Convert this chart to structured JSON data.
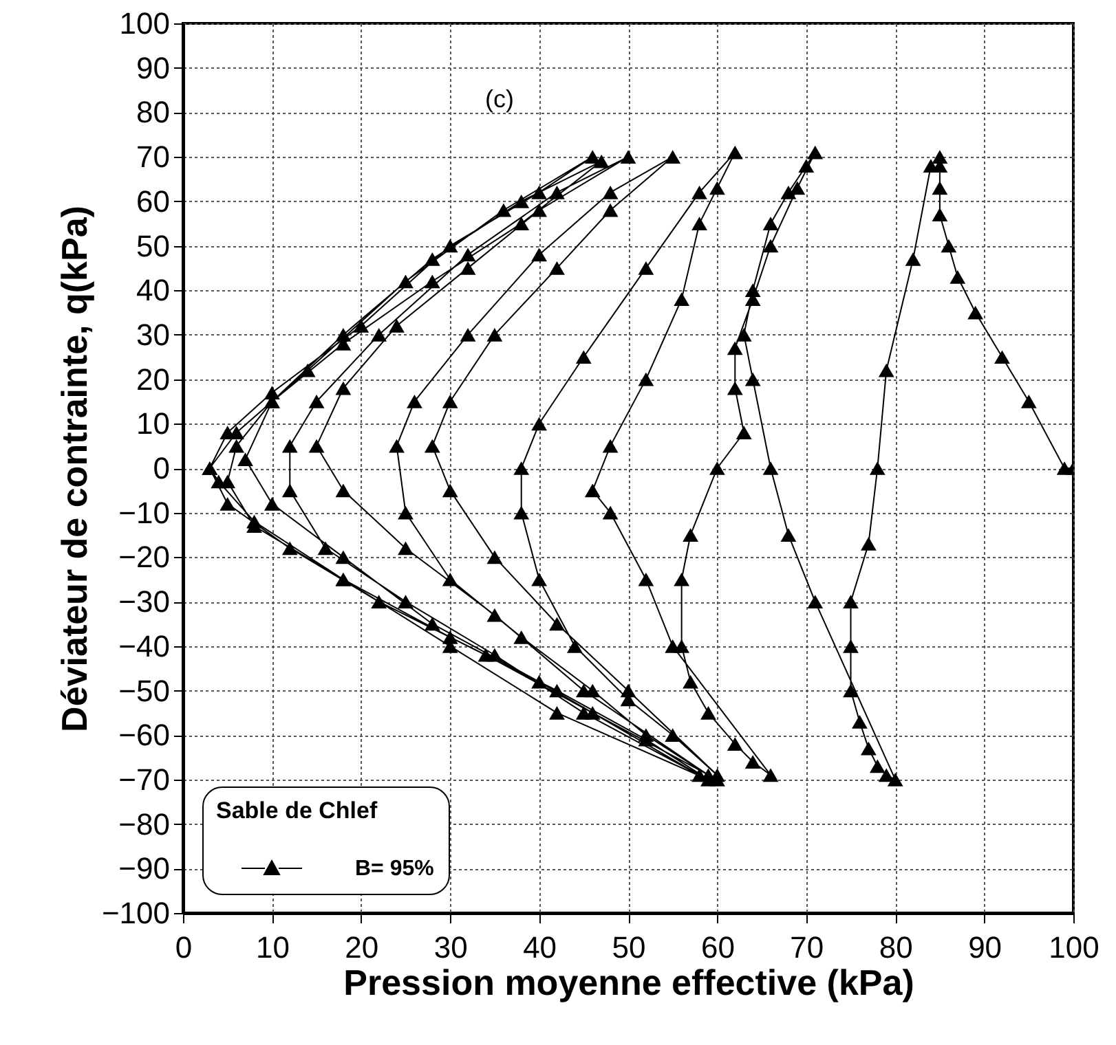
{
  "chart_data": {
    "type": "line",
    "xlabel": "Pression moyenne effective (kPa)",
    "ylabel": "Déviateur de contrainte, q(kPa)",
    "legend_title": "Sable de Chlef",
    "annotations": [
      "(c)"
    ],
    "xlim": [
      0,
      100
    ],
    "ylim": [
      -100,
      100
    ],
    "xticks": [
      0,
      10,
      20,
      30,
      40,
      50,
      60,
      70,
      80,
      90,
      100
    ],
    "yticks": [
      -100,
      -90,
      -80,
      -70,
      -60,
      -50,
      -40,
      -30,
      -20,
      -10,
      0,
      10,
      20,
      30,
      40,
      50,
      60,
      70,
      80,
      90,
      100
    ],
    "grid": true,
    "legend": "bottom left",
    "marker": "triangle",
    "line_style": "solid",
    "series": [
      {
        "name": "B= 95%",
        "color": "#000000",
        "x": [
          100,
          99,
          95,
          92,
          89,
          87,
          86,
          85,
          85,
          85,
          85,
          84,
          82,
          79,
          78,
          77,
          75,
          75,
          75,
          76,
          77,
          78,
          79,
          80,
          71,
          68,
          66,
          64,
          63,
          64,
          66,
          68,
          70,
          71,
          69,
          66,
          64,
          62,
          62,
          63,
          60,
          57,
          56,
          56,
          57,
          59,
          62,
          64,
          66,
          55,
          52,
          48,
          46,
          48,
          52,
          56,
          58,
          60,
          62,
          58,
          52,
          45,
          40,
          38,
          38,
          40,
          44,
          50,
          55,
          60,
          50,
          42,
          35,
          30,
          28,
          30,
          35,
          42,
          48,
          55,
          48,
          40,
          32,
          26,
          24,
          25,
          30,
          38,
          46,
          52,
          59,
          45,
          35,
          25,
          18,
          15,
          18,
          24,
          32,
          40,
          50,
          42,
          32,
          22,
          15,
          12,
          12,
          16,
          25,
          35,
          45,
          58,
          40,
          28,
          18,
          10,
          7,
          10,
          18,
          28,
          38,
          47,
          38,
          28,
          18,
          10,
          6,
          5,
          8,
          18,
          30,
          42,
          52,
          59,
          42,
          30,
          18,
          8,
          4,
          3,
          5,
          10,
          20,
          30,
          40,
          46,
          36,
          25,
          14,
          6,
          3,
          5,
          12,
          22,
          34,
          46,
          60
        ],
        "values": [
          0,
          0,
          15,
          25,
          35,
          43,
          50,
          57,
          63,
          68,
          70,
          68,
          47,
          22,
          0,
          -17,
          -30,
          -40,
          -50,
          -57,
          -63,
          -67,
          -69,
          -70,
          -30,
          -15,
          0,
          20,
          30,
          40,
          55,
          62,
          68,
          71,
          63,
          50,
          38,
          27,
          18,
          8,
          0,
          -15,
          -25,
          -40,
          -48,
          -55,
          -62,
          -66,
          -69,
          -40,
          -25,
          -10,
          -5,
          5,
          20,
          38,
          55,
          63,
          71,
          62,
          45,
          25,
          10,
          0,
          -10,
          -25,
          -40,
          -52,
          -60,
          -69,
          -50,
          -35,
          -20,
          -5,
          5,
          15,
          30,
          45,
          58,
          70,
          62,
          48,
          30,
          15,
          5,
          -10,
          -25,
          -38,
          -50,
          -60,
          -69,
          -50,
          -33,
          -18,
          -5,
          5,
          18,
          32,
          45,
          58,
          70,
          62,
          48,
          30,
          15,
          5,
          -5,
          -18,
          -30,
          -42,
          -55,
          -69,
          -48,
          -35,
          -20,
          -8,
          2,
          15,
          28,
          42,
          55,
          69,
          60,
          47,
          30,
          15,
          5,
          -3,
          -13,
          -25,
          -38,
          -50,
          -61,
          -70,
          -55,
          -40,
          -25,
          -12,
          -3,
          0,
          8,
          17,
          32,
          50,
          62,
          70,
          58,
          42,
          22,
          8,
          0,
          -8,
          -18,
          -30,
          -42,
          -55,
          -70
        ]
      }
    ]
  }
}
